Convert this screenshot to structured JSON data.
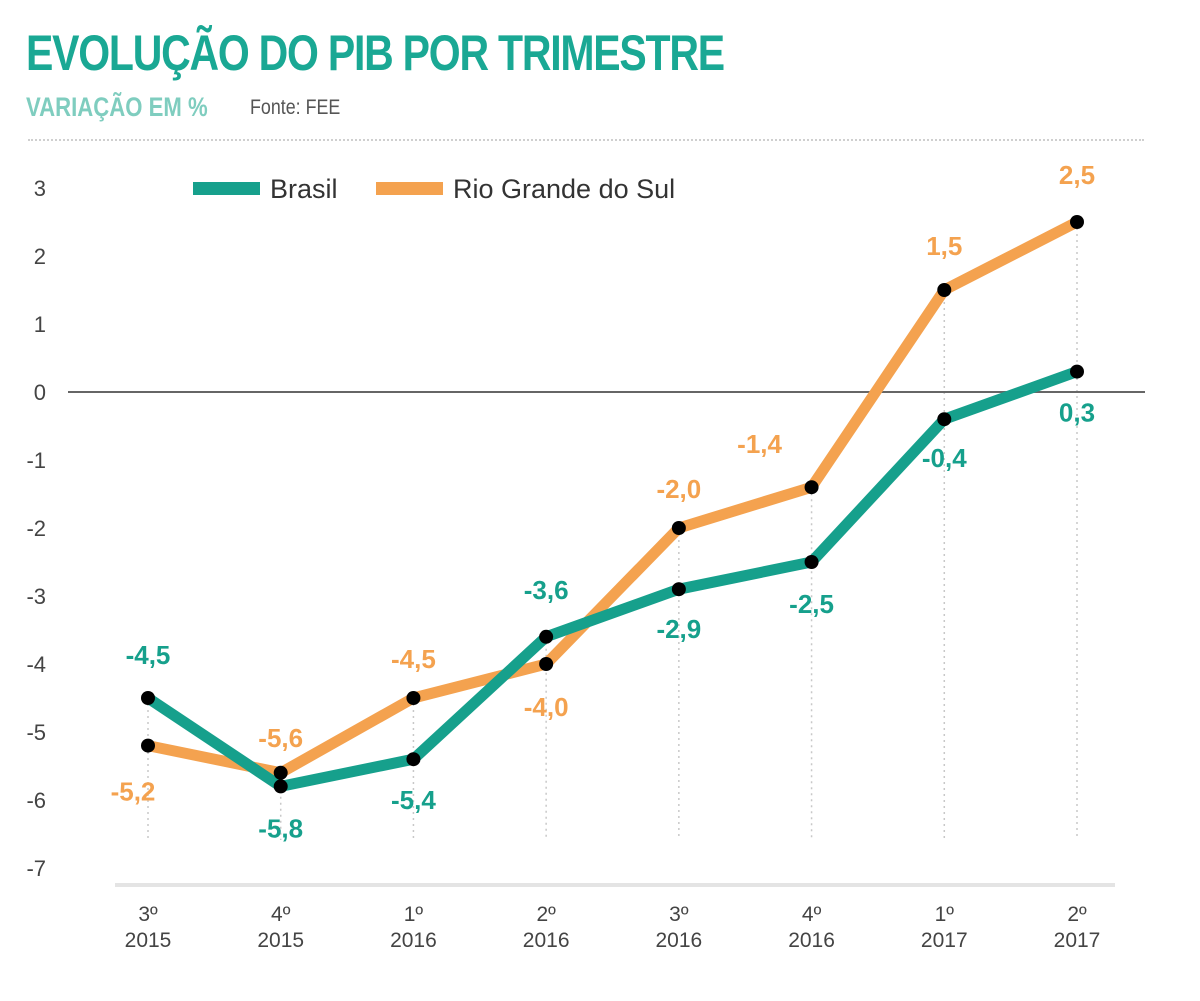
{
  "header": {
    "title": "EVOLUÇÃO DO PIB POR TRIMESTRE",
    "subtitle": "VARIAÇÃO EM %",
    "source": "Fonte: FEE"
  },
  "colors": {
    "brasil": "#16a08c",
    "rs": "#f4a24f",
    "marker": "#000000",
    "title": "#1aa894"
  },
  "chart_data": {
    "type": "line",
    "title": "EVOLUÇÃO DO PIB POR TRIMESTRE",
    "subtitle": "VARIAÇÃO EM %",
    "xlabel": "",
    "ylabel": "",
    "ylim": [
      -7,
      3
    ],
    "yticks": [
      "3",
      "2",
      "1",
      "0",
      "-1",
      "-2",
      "-3",
      "-4",
      "-5",
      "-6",
      "-7"
    ],
    "ytick_values": [
      3,
      2,
      1,
      0,
      -1,
      -2,
      -3,
      -4,
      -5,
      -6,
      -7
    ],
    "categories": [
      {
        "q": "3º",
        "year": "2015"
      },
      {
        "q": "4º",
        "year": "2015"
      },
      {
        "q": "1º",
        "year": "2016"
      },
      {
        "q": "2º",
        "year": "2016"
      },
      {
        "q": "3º",
        "year": "2016"
      },
      {
        "q": "4º",
        "year": "2016"
      },
      {
        "q": "1º",
        "year": "2017"
      },
      {
        "q": "2º",
        "year": "2017"
      }
    ],
    "legend_position": "top",
    "series": [
      {
        "name": "Brasil",
        "values": [
          -4.5,
          -5.8,
          -5.4,
          -3.6,
          -2.9,
          -2.5,
          -0.4,
          0.3
        ],
        "labels": [
          "-4,5",
          "-5,8",
          "-5,4",
          "-3,6",
          "-2,9",
          "-2,5",
          "-0,4",
          "0,3"
        ]
      },
      {
        "name": "Rio Grande do Sul",
        "values": [
          -5.2,
          -5.6,
          -4.5,
          -4.0,
          -2.0,
          -1.4,
          1.5,
          2.5
        ],
        "labels": [
          "-5,2",
          "-5,6",
          "-4,5",
          "-4,0",
          "-2,0",
          "-1,4",
          "1,5",
          "2,5"
        ]
      }
    ]
  }
}
